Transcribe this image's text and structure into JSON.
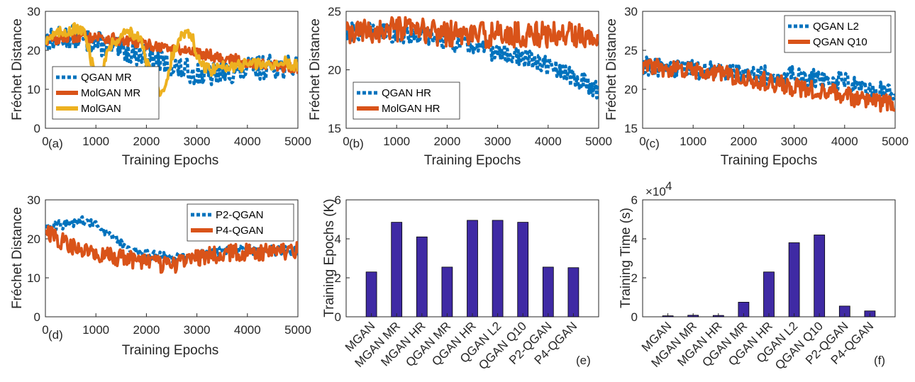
{
  "colors": {
    "blue": "#0072BD",
    "orange": "#D95319",
    "yellow": "#EDB120",
    "bar": "#3F2AA4"
  },
  "chart_data": [
    {
      "type": "line",
      "panel_label": "(a)",
      "xlabel": "Training Epochs",
      "ylabel": "Fréchet Distance",
      "xlim": [
        0,
        5000
      ],
      "ylim": [
        0,
        30
      ],
      "xticks": [
        0,
        1000,
        2000,
        3000,
        4000,
        5000
      ],
      "yticks": [
        0,
        10,
        20,
        30
      ],
      "legend_position": "bottom-left",
      "series": [
        {
          "name": "QGAN MR",
          "color": "#0072BD",
          "style": "dotted",
          "x": [
            0,
            250,
            500,
            750,
            1000,
            1250,
            1500,
            1750,
            2000,
            2250,
            2500,
            2750,
            3000,
            3250,
            3500,
            3750,
            4000,
            4250,
            4500,
            4750,
            5000
          ],
          "y": [
            22.5,
            23,
            23.5,
            23,
            22,
            21,
            20,
            19.5,
            18.5,
            17,
            16,
            15,
            14,
            13.5,
            14.5,
            14.5,
            15,
            15.5,
            16,
            15.5,
            16
          ],
          "noise": 3
        },
        {
          "name": "MolGAN MR",
          "color": "#D95319",
          "style": "solid",
          "x": [
            0,
            250,
            500,
            750,
            1000,
            1250,
            1500,
            1750,
            2000,
            2250,
            2500,
            2750,
            3000,
            3250,
            3500,
            3750,
            4000,
            4250,
            4500,
            4750,
            5000
          ],
          "y": [
            22.5,
            23,
            23.5,
            23.5,
            23.5,
            23,
            22.5,
            22,
            21.5,
            21,
            20.5,
            20,
            19.5,
            19,
            18,
            17.5,
            17,
            16.5,
            16,
            15.5,
            15
          ],
          "noise": 1.5
        },
        {
          "name": "MolGAN",
          "color": "#EDB120",
          "style": "solid",
          "x": [
            0,
            200,
            400,
            600,
            800,
            950,
            1000,
            1100,
            1200,
            1350,
            1500,
            1700,
            1900,
            2000,
            2150,
            2300,
            2400,
            2500,
            2700,
            2900,
            3000,
            3100,
            3300,
            3500,
            3700,
            3900,
            4100,
            4300,
            4500,
            4700,
            5000
          ],
          "y": [
            23,
            24,
            25,
            25.5,
            24,
            15,
            9,
            14,
            19,
            22,
            24,
            25,
            22,
            17,
            13,
            9,
            12,
            18,
            24,
            24,
            18,
            16,
            15,
            16,
            16,
            16,
            17,
            16,
            16.5,
            17,
            16
          ],
          "noise": 1.5
        }
      ]
    },
    {
      "type": "line",
      "panel_label": "(b)",
      "xlabel": "Training Epochs",
      "ylabel": "Fréchet Distance",
      "xlim": [
        0,
        5000
      ],
      "ylim": [
        15,
        25
      ],
      "xticks": [
        0,
        1000,
        2000,
        3000,
        4000,
        5000
      ],
      "yticks": [
        15,
        20,
        25
      ],
      "legend_position": "bottom-left",
      "series": [
        {
          "name": "QGAN HR",
          "color": "#0072BD",
          "style": "dotted",
          "x": [
            0,
            500,
            1000,
            1500,
            2000,
            2500,
            3000,
            3500,
            4000,
            4500,
            5000
          ],
          "y": [
            23.2,
            23.3,
            23.1,
            23,
            22.5,
            22,
            21.5,
            21,
            20.3,
            19.3,
            18.3
          ],
          "noise": 0.8
        },
        {
          "name": "MolGAN HR",
          "color": "#D95319",
          "style": "solid",
          "x": [
            0,
            500,
            1000,
            1500,
            2000,
            2500,
            3000,
            3500,
            4000,
            4500,
            5000
          ],
          "y": [
            23,
            23.3,
            23.4,
            23.3,
            23.1,
            23,
            23,
            23,
            23,
            23,
            23.1
          ],
          "noise": 1.1
        }
      ]
    },
    {
      "type": "line",
      "panel_label": "(c)",
      "xlabel": "Training Epochs",
      "ylabel": "Fréchet Distance",
      "xlim": [
        0,
        5000
      ],
      "ylim": [
        15,
        30
      ],
      "xticks": [
        0,
        1000,
        2000,
        3000,
        4000,
        5000
      ],
      "yticks": [
        15,
        20,
        25,
        30
      ],
      "legend_position": "top-right",
      "series": [
        {
          "name": "QGAN L2",
          "color": "#0072BD",
          "style": "dotted",
          "x": [
            0,
            500,
            1000,
            1500,
            2000,
            2500,
            3000,
            3500,
            4000,
            4500,
            5000
          ],
          "y": [
            23,
            22.8,
            22.5,
            22.3,
            22,
            21.8,
            21.7,
            21.3,
            21,
            20.2,
            19.5
          ],
          "noise": 1.2
        },
        {
          "name": "QGAN Q10",
          "color": "#D95319",
          "style": "solid",
          "x": [
            0,
            500,
            1000,
            1500,
            2000,
            2500,
            3000,
            3500,
            4000,
            4500,
            5000
          ],
          "y": [
            23,
            22.5,
            22.3,
            22,
            21.5,
            21,
            20.3,
            19.8,
            19.2,
            18.5,
            18
          ],
          "noise": 1.2
        }
      ]
    },
    {
      "type": "line",
      "panel_label": "(d)",
      "xlabel": "Training Epochs",
      "ylabel": "Fréchet Distance",
      "xlim": [
        0,
        5000
      ],
      "ylim": [
        0,
        30
      ],
      "xticks": [
        0,
        1000,
        2000,
        3000,
        4000,
        5000
      ],
      "yticks": [
        0,
        10,
        20,
        30
      ],
      "legend_position": "top-right",
      "series": [
        {
          "name": "P2-QGAN",
          "color": "#0072BD",
          "style": "dotted",
          "x": [
            0,
            250,
            500,
            750,
            1000,
            1250,
            1500,
            1750,
            2000,
            2250,
            2500,
            2750,
            3000,
            3250,
            3500,
            3750,
            4000,
            4250,
            4500,
            4750,
            5000
          ],
          "y": [
            23,
            23.5,
            24,
            24.5,
            23.5,
            21,
            19,
            17,
            16,
            15.5,
            15,
            15.5,
            16,
            16.5,
            17,
            17,
            17,
            17,
            17,
            17,
            17
          ],
          "noise": 1.2
        },
        {
          "name": "P4-QGAN",
          "color": "#D95319",
          "style": "solid",
          "x": [
            0,
            250,
            500,
            750,
            1000,
            1250,
            1500,
            1750,
            2000,
            2250,
            2500,
            2750,
            3000,
            3250,
            3500,
            3750,
            4000,
            4250,
            4500,
            4750,
            5000
          ],
          "y": [
            22.5,
            20,
            18,
            17,
            16,
            15.5,
            15,
            14.5,
            14,
            13.5,
            13,
            14,
            15,
            16,
            16,
            16.5,
            16.5,
            16.5,
            16.5,
            16.5,
            17
          ],
          "noise": 2.2
        }
      ]
    },
    {
      "type": "bar",
      "panel_label": "(e)",
      "xlabel": "",
      "ylabel": "Training Epochs (K)",
      "ylim": [
        0,
        6
      ],
      "yticks": [
        0,
        2,
        4,
        6
      ],
      "categories": [
        "MGAN",
        "MGAN MR",
        "MGAN HR",
        "QGAN MR",
        "QGAN HR",
        "QGAN L2",
        "QGAN Q10",
        "P2-QGAN",
        "P4-QGAN"
      ],
      "values": [
        2.3,
        4.85,
        4.1,
        2.55,
        4.95,
        4.95,
        4.85,
        2.55,
        2.52
      ]
    },
    {
      "type": "bar",
      "panel_label": "(f)",
      "xlabel": "",
      "ylabel": "Training Time (s)",
      "exponent_label": "×10",
      "exponent_power": "4",
      "ylim": [
        0,
        6
      ],
      "yticks": [
        0,
        2,
        4,
        6
      ],
      "categories": [
        "MGAN",
        "MGAN MR",
        "MGAN HR",
        "QGAN MR",
        "QGAN HR",
        "QGAN L2",
        "QGAN Q10",
        "P2-QGAN",
        "P4-QGAN"
      ],
      "values": [
        0.05,
        0.08,
        0.07,
        0.75,
        2.3,
        3.8,
        4.2,
        0.55,
        0.3
      ]
    }
  ]
}
